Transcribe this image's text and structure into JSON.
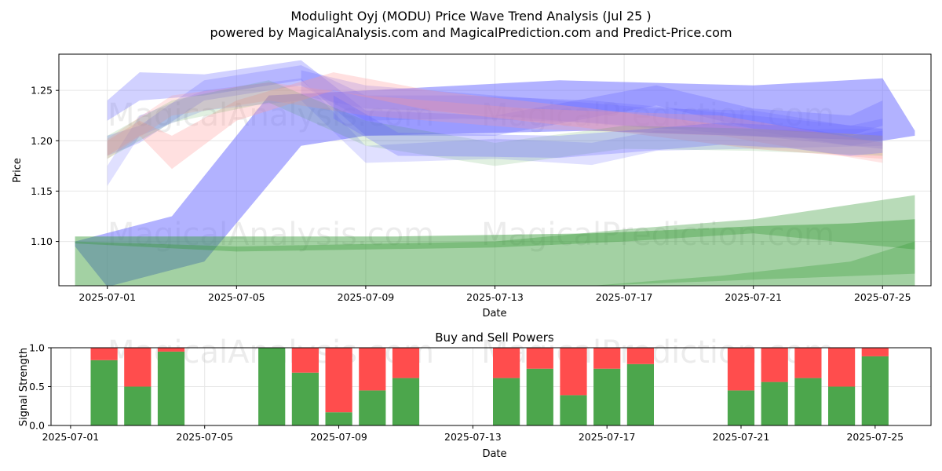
{
  "title_line1": "Modulight Oyj (MODU) Price Wave Trend Analysis (Jul 25 )",
  "title_line2": "powered by MagicalAnalysis.com and MagicalPrediction.com and Predict-Price.com",
  "watermarks": [
    "MagicalAnalysis.com",
    "MagicalPrediction.com"
  ],
  "colors": {
    "blue": "#6666ff",
    "pink": "#ff9999",
    "green": "#339933",
    "buy": "#4ca64c",
    "sell": "#ff4d4d"
  },
  "chart_data": [
    {
      "type": "area",
      "xlabel": "Date",
      "ylabel": "Price",
      "x_range": [
        "2025-06-29T12:00",
        "2025-07-26T12:00"
      ],
      "ylim": [
        1.056,
        1.286
      ],
      "x_ticks": [
        "2025-07-01",
        "2025-07-05",
        "2025-07-09",
        "2025-07-13",
        "2025-07-17",
        "2025-07-21",
        "2025-07-25"
      ],
      "y_ticks": [
        1.1,
        1.15,
        1.2,
        1.25
      ],
      "grid": true,
      "bands": [
        {
          "color": "blue",
          "opacity": 0.5,
          "upper": [
            [
              "2025-06-30",
              1.1
            ],
            [
              "2025-07-03",
              1.125
            ],
            [
              "2025-07-06",
              1.245
            ],
            [
              "2025-07-09",
              1.25
            ],
            [
              "2025-07-15",
              1.26
            ],
            [
              "2025-07-21",
              1.255
            ],
            [
              "2025-07-25",
              1.262
            ],
            [
              "2025-07-26",
              1.21
            ]
          ],
          "lower": [
            [
              "2025-06-30",
              1.095
            ],
            [
              "2025-07-01",
              1.055
            ],
            [
              "2025-07-04",
              1.08
            ],
            [
              "2025-07-07",
              1.195
            ],
            [
              "2025-07-09",
              1.205
            ],
            [
              "2025-07-16",
              1.21
            ],
            [
              "2025-07-25",
              1.2
            ],
            [
              "2025-07-26",
              1.205
            ]
          ]
        },
        {
          "color": "green",
          "opacity": 0.45,
          "upper": [
            [
              "2025-06-30",
              1.105
            ],
            [
              "2025-07-10",
              1.105
            ],
            [
              "2025-07-16",
              1.108
            ],
            [
              "2025-07-21",
              1.115
            ],
            [
              "2025-07-24",
              1.118
            ],
            [
              "2025-07-26",
              1.122
            ]
          ],
          "lower": [
            [
              "2025-06-30",
              1.056
            ],
            [
              "2025-07-26",
              1.056
            ]
          ]
        },
        {
          "color": "green",
          "opacity": 0.35,
          "upper": [
            [
              "2025-06-30",
              1.1
            ],
            [
              "2025-07-05",
              1.095
            ],
            [
              "2025-07-13",
              1.1
            ],
            [
              "2025-07-17",
              1.112
            ],
            [
              "2025-07-21",
              1.122
            ],
            [
              "2025-07-26",
              1.146
            ]
          ],
          "lower": [
            [
              "2025-06-30",
              1.098
            ],
            [
              "2025-07-05",
              1.09
            ],
            [
              "2025-07-13",
              1.094
            ],
            [
              "2025-07-17",
              1.1
            ],
            [
              "2025-07-21",
              1.108
            ],
            [
              "2025-07-26",
              1.092
            ]
          ]
        },
        {
          "color": "green",
          "opacity": 0.3,
          "upper": [
            [
              "2025-07-16",
              1.056
            ],
            [
              "2025-07-20",
              1.066
            ],
            [
              "2025-07-24",
              1.08
            ],
            [
              "2025-07-26",
              1.1
            ]
          ],
          "lower": [
            [
              "2025-07-16",
              1.056
            ],
            [
              "2025-07-26",
              1.068
            ]
          ]
        },
        {
          "color": "blue",
          "opacity": 0.3,
          "upper": [
            [
              "2025-07-01",
              1.24
            ],
            [
              "2025-07-02",
              1.268
            ],
            [
              "2025-07-04",
              1.266
            ],
            [
              "2025-07-07",
              1.28
            ],
            [
              "2025-07-09",
              1.23
            ],
            [
              "2025-07-13",
              1.225
            ],
            [
              "2025-07-18",
              1.255
            ],
            [
              "2025-07-21",
              1.232
            ],
            [
              "2025-07-24",
              1.225
            ],
            [
              "2025-07-25",
              1.24
            ]
          ],
          "lower": [
            [
              "2025-07-01",
              1.22
            ],
            [
              "2025-07-02",
              1.24
            ],
            [
              "2025-07-04",
              1.245
            ],
            [
              "2025-07-07",
              1.26
            ],
            [
              "2025-07-09",
              1.205
            ],
            [
              "2025-07-13",
              1.205
            ],
            [
              "2025-07-18",
              1.235
            ],
            [
              "2025-07-21",
              1.212
            ],
            [
              "2025-07-24",
              1.205
            ],
            [
              "2025-07-25",
              1.215
            ]
          ]
        },
        {
          "color": "blue",
          "opacity": 0.25,
          "upper": [
            [
              "2025-07-01",
              1.205
            ],
            [
              "2025-07-02",
              1.215
            ],
            [
              "2025-07-04",
              1.26
            ],
            [
              "2025-07-07",
              1.275
            ],
            [
              "2025-07-09",
              1.245
            ],
            [
              "2025-07-12",
              1.245
            ],
            [
              "2025-07-16",
              1.24
            ],
            [
              "2025-07-21",
              1.225
            ],
            [
              "2025-07-25",
              1.212
            ]
          ],
          "lower": [
            [
              "2025-07-01",
              1.185
            ],
            [
              "2025-07-02",
              1.198
            ],
            [
              "2025-07-04",
              1.24
            ],
            [
              "2025-07-07",
              1.255
            ],
            [
              "2025-07-09",
              1.22
            ],
            [
              "2025-07-12",
              1.222
            ],
            [
              "2025-07-16",
              1.218
            ],
            [
              "2025-07-21",
              1.205
            ],
            [
              "2025-07-25",
              1.192
            ]
          ]
        },
        {
          "color": "blue",
          "opacity": 0.2,
          "upper": [
            [
              "2025-07-01",
              1.175
            ],
            [
              "2025-07-02",
              1.225
            ],
            [
              "2025-07-04",
              1.25
            ],
            [
              "2025-07-07",
              1.262
            ],
            [
              "2025-07-09",
              1.195
            ],
            [
              "2025-07-13",
              1.202
            ],
            [
              "2025-07-16",
              1.198
            ],
            [
              "2025-07-18",
              1.21
            ],
            [
              "2025-07-25",
              1.212
            ]
          ],
          "lower": [
            [
              "2025-07-01",
              1.155
            ],
            [
              "2025-07-02",
              1.205
            ],
            [
              "2025-07-04",
              1.23
            ],
            [
              "2025-07-07",
              1.24
            ],
            [
              "2025-07-09",
              1.178
            ],
            [
              "2025-07-13",
              1.182
            ],
            [
              "2025-07-16",
              1.176
            ],
            [
              "2025-07-18",
              1.19
            ],
            [
              "2025-07-25",
              1.195
            ]
          ]
        },
        {
          "color": "blue",
          "opacity": 0.25,
          "upper": [
            [
              "2025-07-07",
              1.27
            ],
            [
              "2025-07-09",
              1.255
            ],
            [
              "2025-07-11",
              1.25
            ],
            [
              "2025-07-15",
              1.24
            ],
            [
              "2025-07-18",
              1.232
            ],
            [
              "2025-07-21",
              1.23
            ],
            [
              "2025-07-24",
              1.215
            ],
            [
              "2025-07-25",
              1.222
            ]
          ],
          "lower": [
            [
              "2025-07-07",
              1.245
            ],
            [
              "2025-07-09",
              1.232
            ],
            [
              "2025-07-11",
              1.23
            ],
            [
              "2025-07-15",
              1.22
            ],
            [
              "2025-07-18",
              1.212
            ],
            [
              "2025-07-21",
              1.21
            ],
            [
              "2025-07-24",
              1.195
            ],
            [
              "2025-07-25",
              1.2
            ]
          ]
        },
        {
          "color": "pink",
          "opacity": 0.3,
          "upper": [
            [
              "2025-07-01",
              1.2
            ],
            [
              "2025-07-02",
              1.22
            ],
            [
              "2025-07-03",
              1.205
            ],
            [
              "2025-07-05",
              1.24
            ],
            [
              "2025-07-08",
              1.268
            ],
            [
              "2025-07-11",
              1.25
            ],
            [
              "2025-07-16",
              1.232
            ],
            [
              "2025-07-21",
              1.212
            ],
            [
              "2025-07-25",
              1.205
            ]
          ],
          "lower": [
            [
              "2025-07-01",
              1.185
            ],
            [
              "2025-07-02",
              1.205
            ],
            [
              "2025-07-03",
              1.172
            ],
            [
              "2025-07-05",
              1.22
            ],
            [
              "2025-07-08",
              1.25
            ],
            [
              "2025-07-11",
              1.23
            ],
            [
              "2025-07-16",
              1.212
            ],
            [
              "2025-07-21",
              1.192
            ],
            [
              "2025-07-25",
              1.182
            ]
          ]
        },
        {
          "color": "pink",
          "opacity": 0.25,
          "upper": [
            [
              "2025-07-01",
              1.202
            ],
            [
              "2025-07-03",
              1.245
            ],
            [
              "2025-07-06",
              1.258
            ],
            [
              "2025-07-09",
              1.245
            ],
            [
              "2025-07-14",
              1.232
            ],
            [
              "2025-07-20",
              1.225
            ],
            [
              "2025-07-25",
              1.198
            ]
          ],
          "lower": [
            [
              "2025-07-01",
              1.182
            ],
            [
              "2025-07-03",
              1.225
            ],
            [
              "2025-07-06",
              1.24
            ],
            [
              "2025-07-09",
              1.225
            ],
            [
              "2025-07-14",
              1.212
            ],
            [
              "2025-07-20",
              1.205
            ],
            [
              "2025-07-25",
              1.178
            ]
          ]
        },
        {
          "color": "green",
          "opacity": 0.15,
          "upper": [
            [
              "2025-07-01",
              1.205
            ],
            [
              "2025-07-03",
              1.24
            ],
            [
              "2025-07-06",
              1.26
            ],
            [
              "2025-07-09",
              1.22
            ],
            [
              "2025-07-13",
              1.198
            ],
            [
              "2025-07-17",
              1.215
            ],
            [
              "2025-07-21",
              1.212
            ],
            [
              "2025-07-25",
              1.205
            ]
          ],
          "lower": [
            [
              "2025-07-01",
              1.182
            ],
            [
              "2025-07-03",
              1.218
            ],
            [
              "2025-07-06",
              1.238
            ],
            [
              "2025-07-09",
              1.195
            ],
            [
              "2025-07-13",
              1.175
            ],
            [
              "2025-07-17",
              1.192
            ],
            [
              "2025-07-21",
              1.19
            ],
            [
              "2025-07-25",
              1.185
            ]
          ]
        },
        {
          "color": "blue",
          "opacity": 0.28,
          "upper": [
            [
              "2025-07-08",
              1.245
            ],
            [
              "2025-07-10",
              1.208
            ],
            [
              "2025-07-13",
              1.206
            ],
            [
              "2025-07-15",
              1.205
            ],
            [
              "2025-07-17",
              1.21
            ],
            [
              "2025-07-20",
              1.218
            ],
            [
              "2025-07-22",
              1.215
            ],
            [
              "2025-07-24",
              1.205
            ],
            [
              "2025-07-25",
              1.21
            ]
          ],
          "lower": [
            [
              "2025-07-08",
              1.222
            ],
            [
              "2025-07-10",
              1.185
            ],
            [
              "2025-07-13",
              1.184
            ],
            [
              "2025-07-15",
              1.183
            ],
            [
              "2025-07-17",
              1.188
            ],
            [
              "2025-07-20",
              1.196
            ],
            [
              "2025-07-22",
              1.193
            ],
            [
              "2025-07-24",
              1.185
            ],
            [
              "2025-07-25",
              1.188
            ]
          ]
        }
      ]
    },
    {
      "type": "bar",
      "title": "Buy and Sell Powers",
      "xlabel": "Date",
      "ylabel": "Signal Strength",
      "x_range": [
        "2025-06-30T10:00",
        "2025-07-26T16:00"
      ],
      "ylim": [
        0,
        1
      ],
      "x_ticks": [
        "2025-07-01",
        "2025-07-05",
        "2025-07-09",
        "2025-07-13",
        "2025-07-17",
        "2025-07-21",
        "2025-07-25"
      ],
      "y_ticks": [
        "0.0",
        "0.5",
        "1.0"
      ],
      "grid": true,
      "bars": [
        {
          "date": "2025-07-02",
          "buy": 0.84
        },
        {
          "date": "2025-07-03",
          "buy": 0.5
        },
        {
          "date": "2025-07-04",
          "buy": 0.95
        },
        {
          "date": "2025-07-07",
          "buy": 1.0
        },
        {
          "date": "2025-07-08",
          "buy": 0.68
        },
        {
          "date": "2025-07-09",
          "buy": 0.17
        },
        {
          "date": "2025-07-10",
          "buy": 0.45
        },
        {
          "date": "2025-07-11",
          "buy": 0.61
        },
        {
          "date": "2025-07-14",
          "buy": 0.61
        },
        {
          "date": "2025-07-15",
          "buy": 0.73
        },
        {
          "date": "2025-07-16",
          "buy": 0.39
        },
        {
          "date": "2025-07-17",
          "buy": 0.73
        },
        {
          "date": "2025-07-18",
          "buy": 0.79
        },
        {
          "date": "2025-07-21",
          "buy": 0.45
        },
        {
          "date": "2025-07-22",
          "buy": 0.56
        },
        {
          "date": "2025-07-23",
          "buy": 0.61
        },
        {
          "date": "2025-07-24",
          "buy": 0.5
        },
        {
          "date": "2025-07-25",
          "buy": 0.89
        }
      ]
    }
  ]
}
